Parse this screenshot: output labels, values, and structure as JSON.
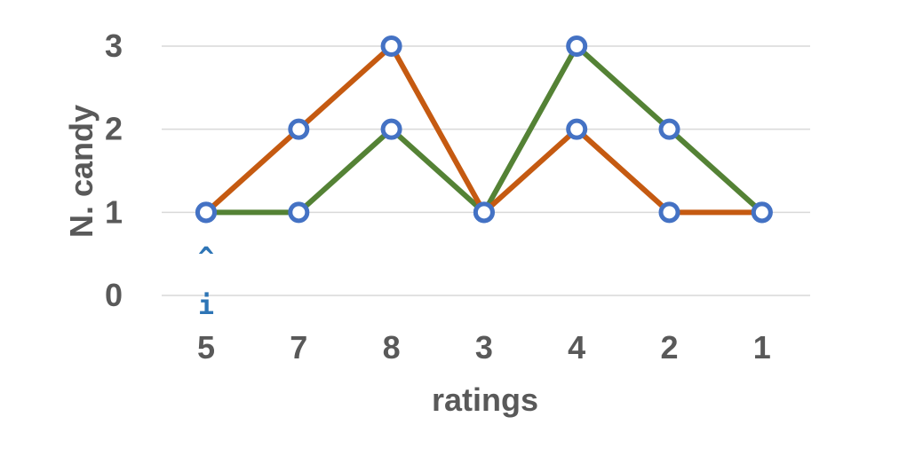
{
  "chart_data": {
    "type": "line",
    "categories": [
      "5",
      "7",
      "8",
      "3",
      "4",
      "2",
      "1"
    ],
    "series": [
      {
        "values": [
          1,
          2,
          3,
          1,
          2,
          1,
          1
        ],
        "color": "#C55A11"
      },
      {
        "values": [
          1,
          1,
          2,
          1,
          3,
          2,
          1
        ],
        "color": "#548235"
      }
    ],
    "marker_color": "#4472C4",
    "xlabel": "ratings",
    "ylabel": "N. candy",
    "ylim": [
      0,
      3
    ],
    "yticks": [
      "0",
      "1",
      "2",
      "3"
    ],
    "grid": true,
    "annotation": {
      "category": "5",
      "caret": "^",
      "letter": "i",
      "color": "#2E75B6"
    }
  }
}
